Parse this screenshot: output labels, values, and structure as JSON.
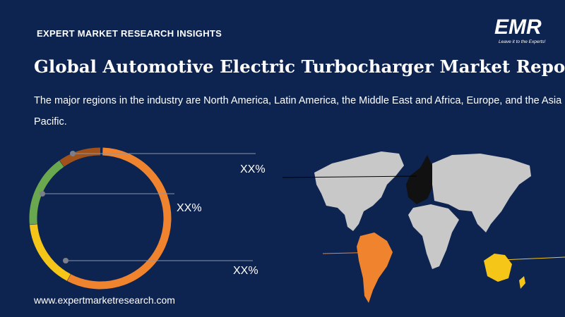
{
  "header": {
    "kicker": "EXPERT MARKET RESEARCH INSIGHTS",
    "title": "Global Automotive Electric Turbocharger Market Report",
    "description": "The major regions in the industry are North America, Latin America, the Middle East and Africa, Europe, and the Asia Pacific."
  },
  "logo": {
    "text": "EMR",
    "tagline": "Leave it to the Experts!"
  },
  "labels": [
    "XX%",
    "XX%",
    "XX%"
  ],
  "footer": {
    "url": "www.expertmarketresearch.com"
  }
}
